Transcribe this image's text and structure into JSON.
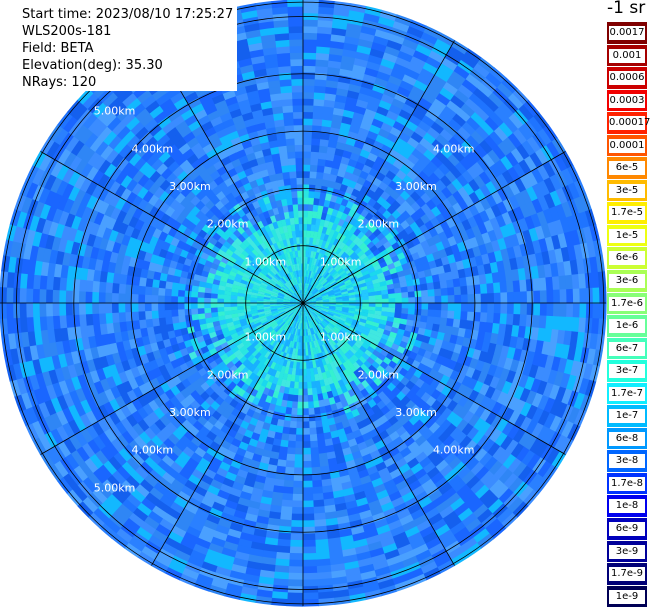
{
  "info": {
    "start_time": "Start time: 2023/08/10 17:25:27",
    "instrument": "WLS200s-181",
    "field": "Field: BETA",
    "elevation": "Elevation(deg): 35.30",
    "nrays": "NRays: 120"
  },
  "legend": {
    "unit": "-1 sr",
    "entries": [
      {
        "label": "0.0017",
        "color": "#7f0000"
      },
      {
        "label": "0.001",
        "color": "#a50000"
      },
      {
        "label": "0.0006",
        "color": "#cc0000"
      },
      {
        "label": "0.0003",
        "color": "#f20000"
      },
      {
        "label": "0.00017",
        "color": "#ff2200"
      },
      {
        "label": "0.0001",
        "color": "#ff5500"
      },
      {
        "label": "6e-5",
        "color": "#ff8800"
      },
      {
        "label": "3e-5",
        "color": "#ffbb00"
      },
      {
        "label": "1.7e-5",
        "color": "#ffee00"
      },
      {
        "label": "1e-5",
        "color": "#eeff11"
      },
      {
        "label": "6e-6",
        "color": "#ccff33"
      },
      {
        "label": "3e-6",
        "color": "#aaff55"
      },
      {
        "label": "1.7e-6",
        "color": "#88ff77"
      },
      {
        "label": "1e-6",
        "color": "#66ff99"
      },
      {
        "label": "6e-7",
        "color": "#44ffbb"
      },
      {
        "label": "3e-7",
        "color": "#22ffdd"
      },
      {
        "label": "1.7e-7",
        "color": "#11eeff"
      },
      {
        "label": "1e-7",
        "color": "#00bbff"
      },
      {
        "label": "6e-8",
        "color": "#0099ff"
      },
      {
        "label": "3e-8",
        "color": "#0066ff"
      },
      {
        "label": "1.7e-8",
        "color": "#0033ff"
      },
      {
        "label": "1e-8",
        "color": "#0000ee"
      },
      {
        "label": "6e-9",
        "color": "#0000bb"
      },
      {
        "label": "3e-9",
        "color": "#000099"
      },
      {
        "label": "1.7e-9",
        "color": "#000077"
      },
      {
        "label": "1e-9",
        "color": "#000055"
      }
    ]
  },
  "rings": {
    "labels": [
      "1.00km",
      "2.00km",
      "3.00km",
      "4.00km",
      "5.00km"
    ],
    "max_range_km": 5.0
  },
  "palette": {
    "outer_blues": [
      "#1a66ff",
      "#2a80ff",
      "#1f74ff",
      "#3b8cff",
      "#2f86f5",
      "#1460ee",
      "#4aa0ff",
      "#12b8ff"
    ],
    "inner_cyans": [
      "#22c8ff",
      "#1ad8ee",
      "#2ae6e0",
      "#35f0d0",
      "#19b0ff",
      "#40e8e0"
    ]
  }
}
